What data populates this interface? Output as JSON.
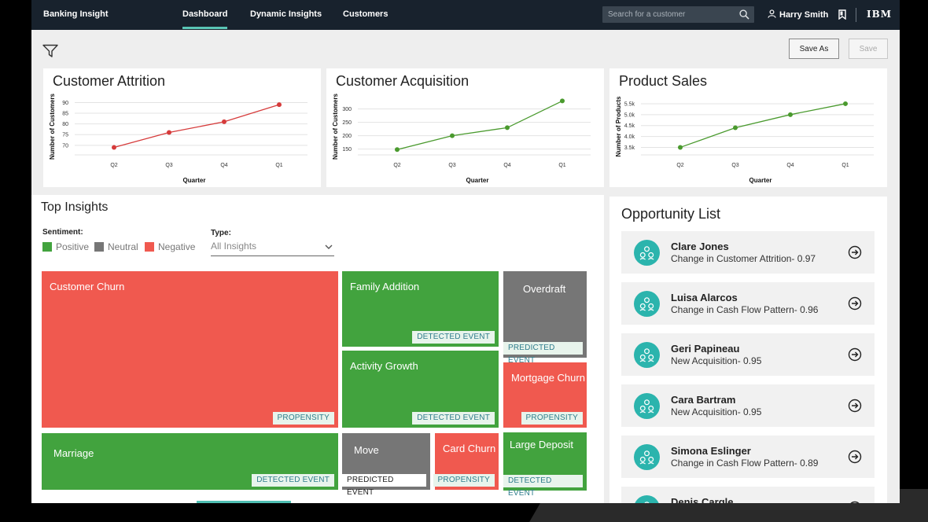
{
  "header": {
    "brand": "Banking Insight",
    "tabs": [
      {
        "label": "Dashboard",
        "active": true
      },
      {
        "label": "Dynamic Insights",
        "active": false
      },
      {
        "label": "Customers",
        "active": false
      }
    ],
    "search_placeholder": "Search for a customer",
    "user_name": "Harry Smith",
    "logo_text": "IBM"
  },
  "toolbar": {
    "save_as_label": "Save As",
    "save_label": "Save"
  },
  "charts": {
    "attrition_title": "Customer Attrition",
    "acquisition_title": "Customer Acquisition",
    "sales_title": "Product Sales"
  },
  "chart_data": [
    {
      "type": "line",
      "title": "Customer Attrition",
      "xlabel": "Quarter",
      "ylabel": "Number of Customers",
      "categories": [
        "Q2",
        "Q3",
        "Q4",
        "Q1"
      ],
      "values": [
        69,
        76,
        81,
        89
      ],
      "yticks": [
        70,
        75,
        80,
        85,
        90
      ],
      "ylim": [
        67,
        92
      ],
      "color": "#d63b3b"
    },
    {
      "type": "line",
      "title": "Customer Acquisition",
      "xlabel": "Quarter",
      "ylabel": "Number of Customers",
      "categories": [
        "Q2",
        "Q3",
        "Q4",
        "Q1"
      ],
      "values": [
        148,
        200,
        230,
        330
      ],
      "yticks": [
        150,
        200,
        250,
        300
      ],
      "ylim": [
        140,
        340
      ],
      "color": "#4a9a2e"
    },
    {
      "type": "line",
      "title": "Product Sales",
      "xlabel": "Quarter",
      "ylabel": "Number of Products",
      "categories": [
        "Q2",
        "Q3",
        "Q4",
        "Q1"
      ],
      "values": [
        3.5,
        4.4,
        5.0,
        5.5
      ],
      "yticks": [
        3.5,
        4.0,
        4.5,
        5.0,
        5.5
      ],
      "ytick_labels": [
        "3.5k",
        "4.0k",
        "4.5k",
        "5.0k",
        "5.5k"
      ],
      "ylim": [
        3.3,
        5.75
      ],
      "color": "#4a9a2e"
    }
  ],
  "insights": {
    "title": "Top Insights",
    "sentiment_label": "Sentiment:",
    "legend": [
      {
        "label": "Positive",
        "color": "#42a33e"
      },
      {
        "label": "Neutral",
        "color": "#767676"
      },
      {
        "label": "Negative",
        "color": "#f0594f"
      }
    ],
    "type_label": "Type:",
    "type_value": "All Insights",
    "tiles": [
      {
        "label": "Customer Churn",
        "badge": "PROPENSITY",
        "sentiment": "negative"
      },
      {
        "label": "Family Addition",
        "badge": "DETECTED EVENT",
        "sentiment": "positive"
      },
      {
        "label": "Overdraft",
        "badge": "PREDICTED EVENT",
        "sentiment": "neutral"
      },
      {
        "label": "Activity Growth",
        "badge": "DETECTED EVENT",
        "sentiment": "positive"
      },
      {
        "label": "Mortgage Churn",
        "badge": "PROPENSITY",
        "sentiment": "negative"
      },
      {
        "label": "Marriage",
        "badge": "DETECTED EVENT",
        "sentiment": "positive"
      },
      {
        "label": "Move",
        "badge": "PREDICTED EVENT",
        "sentiment": "neutral"
      },
      {
        "label": "Card Churn",
        "badge": "PROPENSITY",
        "sentiment": "negative"
      },
      {
        "label": "Large Deposit",
        "badge": "DETECTED EVENT",
        "sentiment": "positive"
      }
    ]
  },
  "opportunities": {
    "title": "Opportunity List",
    "items": [
      {
        "name": "Clare Jones",
        "desc": "Change in Customer Attrition- 0.97"
      },
      {
        "name": "Luisa Alarcos",
        "desc": "Change in Cash Flow Pattern- 0.96"
      },
      {
        "name": "Geri Papineau",
        "desc": "New Acquisition- 0.95"
      },
      {
        "name": "Cara Bartram",
        "desc": "New Acquisition- 0.95"
      },
      {
        "name": "Simona Eslinger",
        "desc": "Change in Cash Flow Pattern- 0.89"
      },
      {
        "name": "Denis Cargle",
        "desc": ""
      }
    ]
  }
}
